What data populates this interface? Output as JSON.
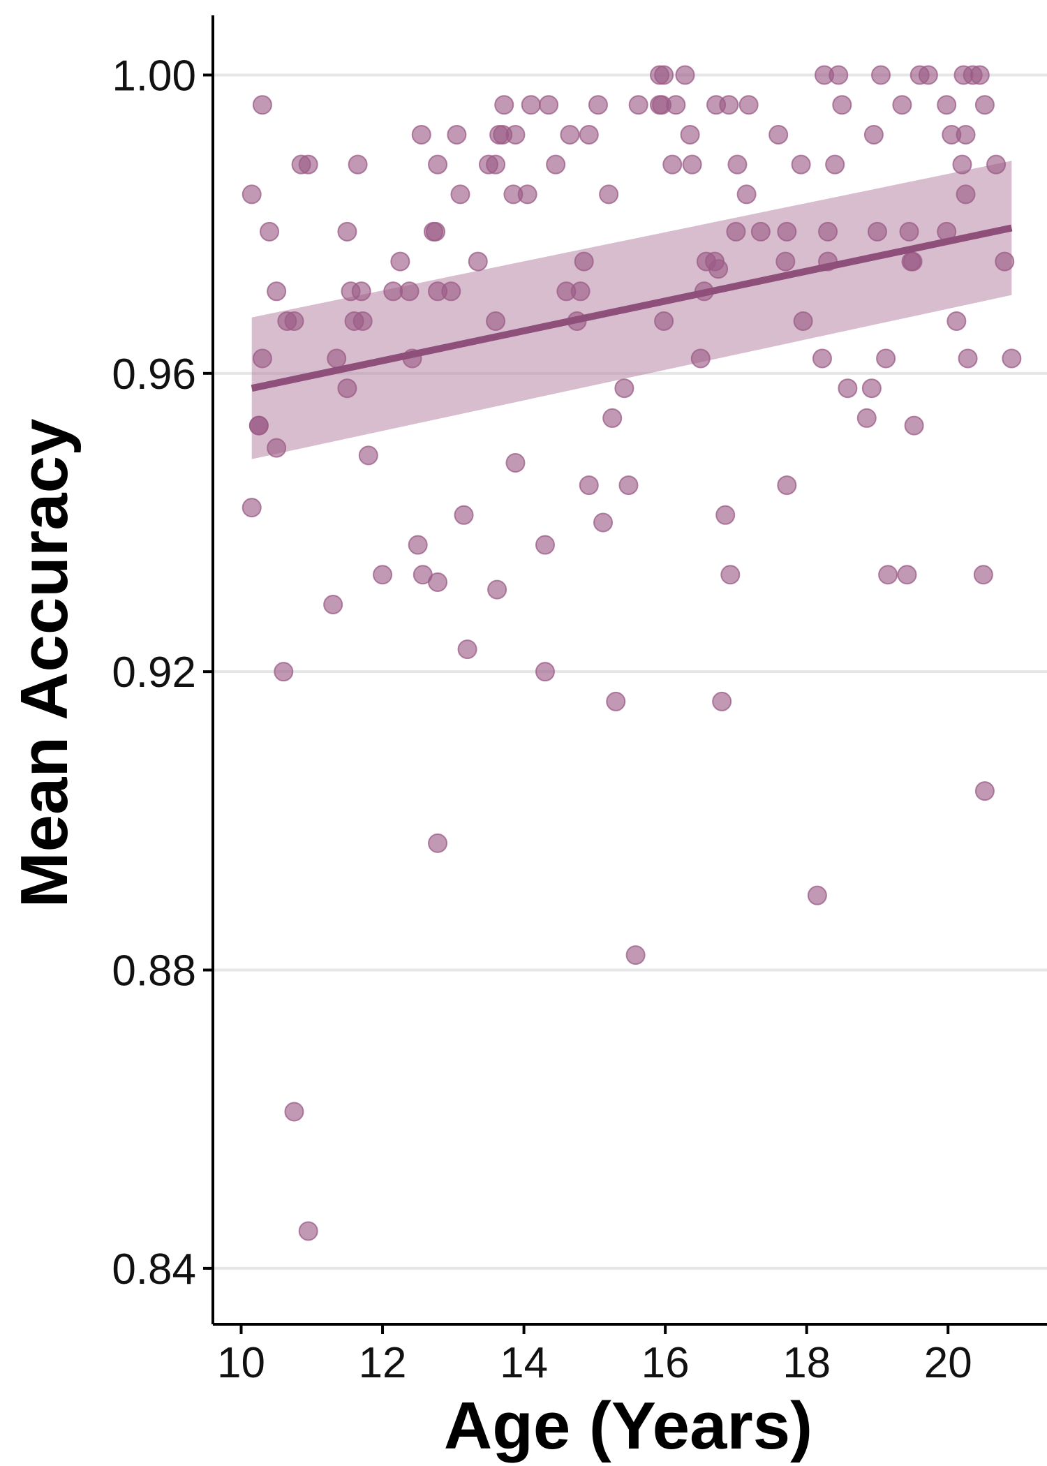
{
  "chart_data": {
    "type": "scatter",
    "title": "",
    "xlabel": "Age (Years)",
    "ylabel": "Mean Accuracy",
    "xlim": [
      9.6,
      21.4
    ],
    "ylim": [
      0.8325,
      1.008
    ],
    "x_ticks": [
      10,
      12,
      14,
      16,
      18,
      20
    ],
    "x_tick_labels": [
      "10",
      "12",
      "14",
      "16",
      "18",
      "20"
    ],
    "y_ticks": [
      0.84,
      0.88,
      0.92,
      0.96,
      1.0
    ],
    "y_tick_labels": [
      "0.84",
      "0.88",
      "0.92",
      "0.96",
      "1.00"
    ],
    "grid": "horizontal major lines",
    "legend": "none",
    "colors": {
      "points": "#9b5b86",
      "fit_line": "#8e4f7a",
      "confidence_band": "#b07b9e"
    },
    "fit": {
      "method": "linear",
      "x": [
        10.15,
        20.9
      ],
      "y": [
        0.958,
        0.9795
      ],
      "ci_lower": [
        0.9485,
        0.9705
      ],
      "ci_upper": [
        0.9675,
        0.9885
      ]
    },
    "points": [
      [
        10.15,
        0.984
      ],
      [
        10.15,
        0.942
      ],
      [
        10.25,
        0.953
      ],
      [
        10.25,
        0.953
      ],
      [
        10.3,
        0.962
      ],
      [
        10.3,
        0.996
      ],
      [
        10.4,
        0.979
      ],
      [
        10.5,
        0.971
      ],
      [
        10.5,
        0.95
      ],
      [
        10.6,
        0.92
      ],
      [
        10.65,
        0.967
      ],
      [
        10.75,
        0.967
      ],
      [
        10.75,
        0.861
      ],
      [
        10.85,
        0.988
      ],
      [
        10.95,
        0.988
      ],
      [
        10.95,
        0.845
      ],
      [
        11.3,
        0.929
      ],
      [
        11.35,
        0.962
      ],
      [
        11.5,
        0.958
      ],
      [
        11.5,
        0.979
      ],
      [
        11.55,
        0.971
      ],
      [
        11.6,
        0.967
      ],
      [
        11.65,
        0.988
      ],
      [
        11.7,
        0.971
      ],
      [
        11.72,
        0.967
      ],
      [
        11.8,
        0.949
      ],
      [
        12.0,
        0.933
      ],
      [
        12.15,
        0.971
      ],
      [
        12.25,
        0.975
      ],
      [
        12.38,
        0.971
      ],
      [
        12.42,
        0.962
      ],
      [
        12.5,
        0.937
      ],
      [
        12.55,
        0.992
      ],
      [
        12.57,
        0.933
      ],
      [
        12.72,
        0.979
      ],
      [
        12.75,
        0.979
      ],
      [
        12.78,
        0.988
      ],
      [
        12.78,
        0.971
      ],
      [
        12.78,
        0.932
      ],
      [
        12.78,
        0.897
      ],
      [
        12.97,
        0.971
      ],
      [
        13.05,
        0.992
      ],
      [
        13.1,
        0.984
      ],
      [
        13.15,
        0.941
      ],
      [
        13.2,
        0.923
      ],
      [
        13.35,
        0.975
      ],
      [
        13.5,
        0.988
      ],
      [
        13.6,
        0.988
      ],
      [
        13.6,
        0.967
      ],
      [
        13.62,
        0.931
      ],
      [
        13.65,
        0.992
      ],
      [
        13.7,
        0.992
      ],
      [
        13.72,
        0.996
      ],
      [
        13.85,
        0.984
      ],
      [
        13.88,
        0.992
      ],
      [
        13.88,
        0.948
      ],
      [
        14.05,
        0.984
      ],
      [
        14.1,
        0.996
      ],
      [
        14.3,
        0.937
      ],
      [
        14.3,
        0.92
      ],
      [
        14.35,
        0.996
      ],
      [
        14.45,
        0.988
      ],
      [
        14.6,
        0.971
      ],
      [
        14.65,
        0.992
      ],
      [
        14.75,
        0.967
      ],
      [
        14.8,
        0.971
      ],
      [
        14.85,
        0.975
      ],
      [
        14.92,
        0.992
      ],
      [
        14.92,
        0.945
      ],
      [
        15.05,
        0.996
      ],
      [
        15.12,
        0.94
      ],
      [
        15.2,
        0.984
      ],
      [
        15.25,
        0.954
      ],
      [
        15.3,
        0.916
      ],
      [
        15.42,
        0.958
      ],
      [
        15.48,
        0.945
      ],
      [
        15.58,
        0.882
      ],
      [
        15.62,
        0.996
      ],
      [
        15.92,
        1.0
      ],
      [
        15.92,
        0.996
      ],
      [
        15.95,
        0.996
      ],
      [
        15.98,
        1.0
      ],
      [
        15.98,
        0.967
      ],
      [
        16.1,
        0.988
      ],
      [
        16.15,
        0.996
      ],
      [
        16.28,
        1.0
      ],
      [
        16.35,
        0.992
      ],
      [
        16.38,
        0.988
      ],
      [
        16.5,
        0.962
      ],
      [
        16.55,
        0.971
      ],
      [
        16.58,
        0.975
      ],
      [
        16.7,
        0.975
      ],
      [
        16.72,
        0.996
      ],
      [
        16.75,
        0.974
      ],
      [
        16.8,
        0.916
      ],
      [
        16.85,
        0.941
      ],
      [
        16.9,
        0.996
      ],
      [
        16.92,
        0.933
      ],
      [
        17.0,
        0.979
      ],
      [
        17.02,
        0.988
      ],
      [
        17.15,
        0.984
      ],
      [
        17.18,
        0.996
      ],
      [
        17.35,
        0.979
      ],
      [
        17.6,
        0.992
      ],
      [
        17.7,
        0.975
      ],
      [
        17.72,
        0.979
      ],
      [
        17.72,
        0.945
      ],
      [
        17.92,
        0.988
      ],
      [
        17.95,
        0.967
      ],
      [
        18.15,
        0.89
      ],
      [
        18.22,
        0.962
      ],
      [
        18.25,
        1.0
      ],
      [
        18.3,
        0.979
      ],
      [
        18.3,
        0.975
      ],
      [
        18.4,
        0.988
      ],
      [
        18.45,
        1.0
      ],
      [
        18.5,
        0.996
      ],
      [
        18.58,
        0.958
      ],
      [
        18.85,
        0.954
      ],
      [
        18.92,
        0.958
      ],
      [
        18.95,
        0.992
      ],
      [
        19.0,
        0.979
      ],
      [
        19.05,
        1.0
      ],
      [
        19.12,
        0.962
      ],
      [
        19.15,
        0.933
      ],
      [
        19.35,
        0.996
      ],
      [
        19.42,
        0.933
      ],
      [
        19.45,
        0.979
      ],
      [
        19.48,
        0.975
      ],
      [
        19.5,
        0.975
      ],
      [
        19.52,
        0.953
      ],
      [
        19.6,
        1.0
      ],
      [
        19.72,
        1.0
      ],
      [
        19.98,
        0.996
      ],
      [
        19.98,
        0.979
      ],
      [
        20.05,
        0.992
      ],
      [
        20.12,
        0.967
      ],
      [
        20.2,
        0.988
      ],
      [
        20.22,
        1.0
      ],
      [
        20.25,
        0.984
      ],
      [
        20.25,
        0.992
      ],
      [
        20.28,
        0.962
      ],
      [
        20.35,
        1.0
      ],
      [
        20.45,
        1.0
      ],
      [
        20.5,
        0.933
      ],
      [
        20.52,
        0.996
      ],
      [
        20.52,
        0.904
      ],
      [
        20.68,
        0.988
      ],
      [
        20.8,
        0.975
      ],
      [
        20.9,
        0.962
      ]
    ]
  }
}
